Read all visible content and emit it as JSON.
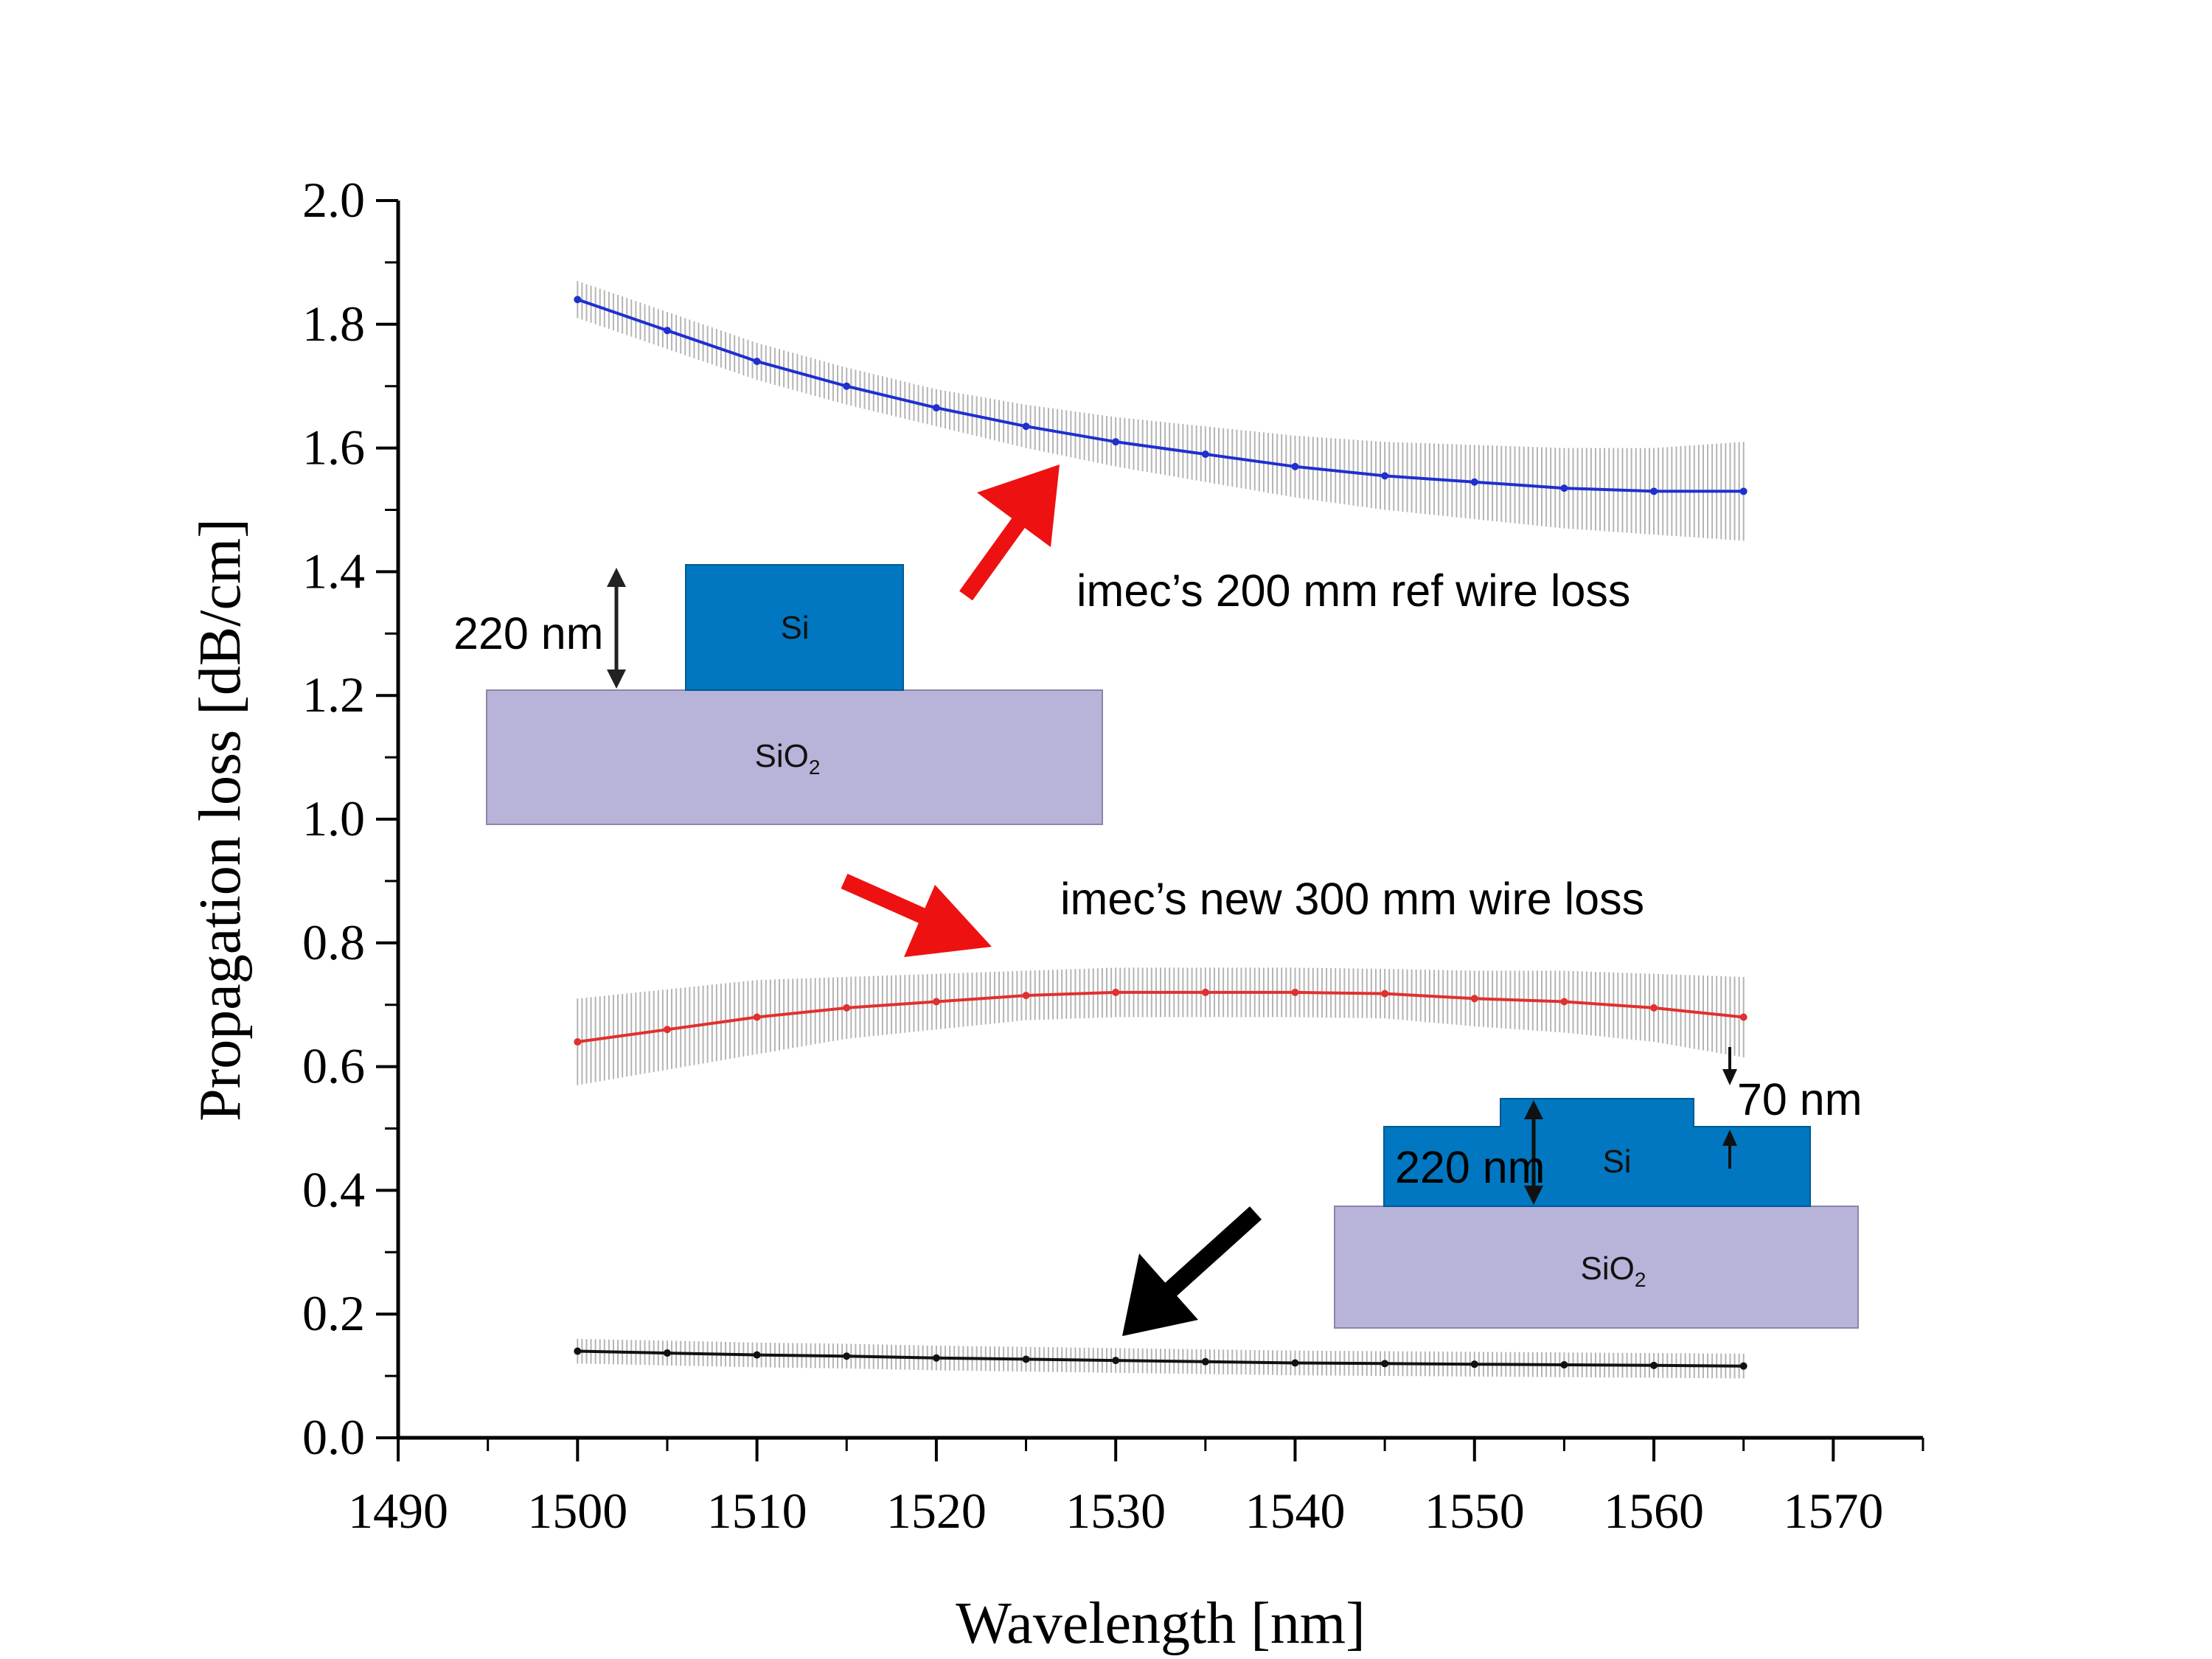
{
  "chart_data": {
    "type": "line",
    "xlabel": "Wavelength [nm]",
    "ylabel": "Propagation loss [dB/cm]",
    "xlim": [
      1490,
      1575
    ],
    "ylim": [
      0,
      2.0
    ],
    "xticks": [
      1490,
      1500,
      1510,
      1520,
      1530,
      1540,
      1550,
      1560,
      1570
    ],
    "xtick_labels": [
      "1490",
      "1500",
      "1510",
      "1520",
      "1530",
      "1540",
      "1550",
      "1560",
      "1570"
    ],
    "yticks": [
      0,
      0.2,
      0.4,
      0.6,
      0.8,
      1.0,
      1.2,
      1.4,
      1.6,
      1.8,
      2.0
    ],
    "ytick_labels": [
      "0.0",
      "0.2",
      "0.4",
      "0.6",
      "0.8",
      "1.0",
      "1.2",
      "1.4",
      "1.6",
      "1.8",
      "2.0"
    ],
    "grid": false,
    "series": [
      {
        "color": "#1f2fd0",
        "x": [
          1500,
          1505,
          1510,
          1515,
          1520,
          1525,
          1530,
          1535,
          1540,
          1545,
          1550,
          1555,
          1560,
          1565
        ],
        "y": [
          1.84,
          1.79,
          1.74,
          1.7,
          1.665,
          1.635,
          1.61,
          1.59,
          1.57,
          1.555,
          1.545,
          1.535,
          1.53,
          1.53
        ],
        "err": [
          0.03,
          0.03,
          0.03,
          0.03,
          0.03,
          0.035,
          0.04,
          0.045,
          0.05,
          0.055,
          0.06,
          0.065,
          0.07,
          0.08
        ]
      },
      {
        "color": "#e03030",
        "x": [
          1500,
          1505,
          1510,
          1515,
          1520,
          1525,
          1530,
          1535,
          1540,
          1545,
          1550,
          1555,
          1560,
          1565
        ],
        "y": [
          0.64,
          0.66,
          0.68,
          0.695,
          0.705,
          0.715,
          0.72,
          0.72,
          0.72,
          0.718,
          0.71,
          0.705,
          0.695,
          0.68
        ],
        "err": [
          0.07,
          0.065,
          0.06,
          0.05,
          0.045,
          0.04,
          0.04,
          0.04,
          0.04,
          0.04,
          0.045,
          0.05,
          0.055,
          0.065
        ]
      },
      {
        "color": "#111111",
        "x": [
          1500,
          1505,
          1510,
          1515,
          1520,
          1525,
          1530,
          1535,
          1540,
          1545,
          1550,
          1555,
          1560,
          1565
        ],
        "y": [
          0.14,
          0.137,
          0.134,
          0.132,
          0.129,
          0.127,
          0.125,
          0.123,
          0.121,
          0.12,
          0.119,
          0.118,
          0.117,
          0.116
        ],
        "err": [
          0.02,
          0.02,
          0.02,
          0.02,
          0.02,
          0.02,
          0.02,
          0.02,
          0.02,
          0.02,
          0.02,
          0.02,
          0.02,
          0.02
        ]
      }
    ],
    "annotations": {
      "ref_loss": "imec’s 200 mm ref wire loss",
      "new_loss": "imec’s new 300 mm wire loss"
    }
  },
  "diagram_wire": {
    "height_label": "220 nm",
    "core_label": "Si",
    "substrate_label": "SiO",
    "substrate_sub": "2",
    "core_color": "#0077c0",
    "substrate_color": "#b8b3d8"
  },
  "diagram_rib": {
    "height_label": "220 nm",
    "etch_label": "70 nm",
    "core_label": "Si",
    "substrate_label": "SiO",
    "substrate_sub": "2",
    "core_color": "#0077c0",
    "substrate_color": "#b8b3d8"
  },
  "arrow_colors": {
    "red": "#ee1111",
    "black": "#000000"
  },
  "errorbar_color": "#b4b4b4"
}
